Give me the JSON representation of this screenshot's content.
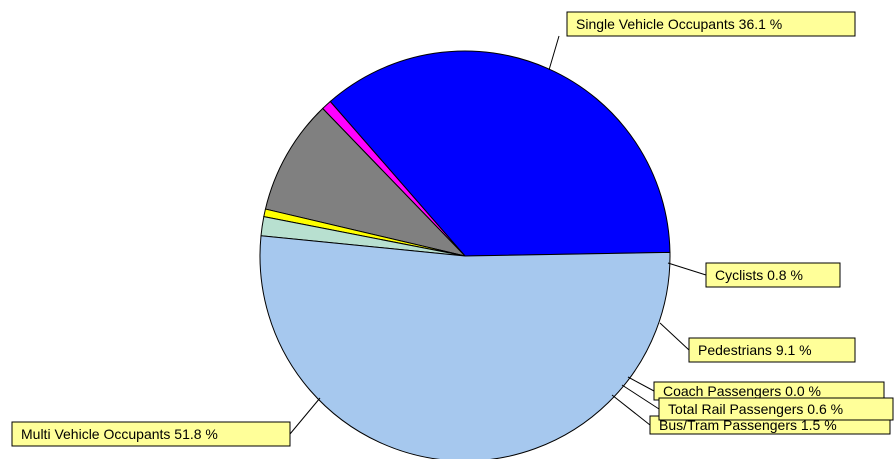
{
  "chart_data": {
    "type": "pie",
    "slices": [
      {
        "label": "Single Vehicle Occupants",
        "value": 36.1,
        "display": "Single Vehicle Occupants 36.1 %",
        "color": "#0000ff"
      },
      {
        "label": "Cyclists",
        "value": 0.8,
        "display": "Cyclists 0.8 %",
        "color": "#ff00ff"
      },
      {
        "label": "Pedestrians",
        "value": 9.1,
        "display": "Pedestrians 9.1 %",
        "color": "#808080"
      },
      {
        "label": "Coach Passengers",
        "value": 0.0,
        "display": "Coach Passengers 0.0 %",
        "color": "#ffff00"
      },
      {
        "label": "Total Rail Passengers",
        "value": 0.6,
        "display": "Total Rail Passengers 0.6 %",
        "color": "#ffff00"
      },
      {
        "label": "Bus/Tram Passengers",
        "value": 1.5,
        "display": "Bus/Tram Passengers 1.5 %",
        "color": "#b8e0d0"
      },
      {
        "label": "Multi Vehicle Occupants",
        "value": 51.8,
        "display": "Multi Vehicle Occupants 51.8 %",
        "color": "#a6c8ee"
      }
    ]
  }
}
